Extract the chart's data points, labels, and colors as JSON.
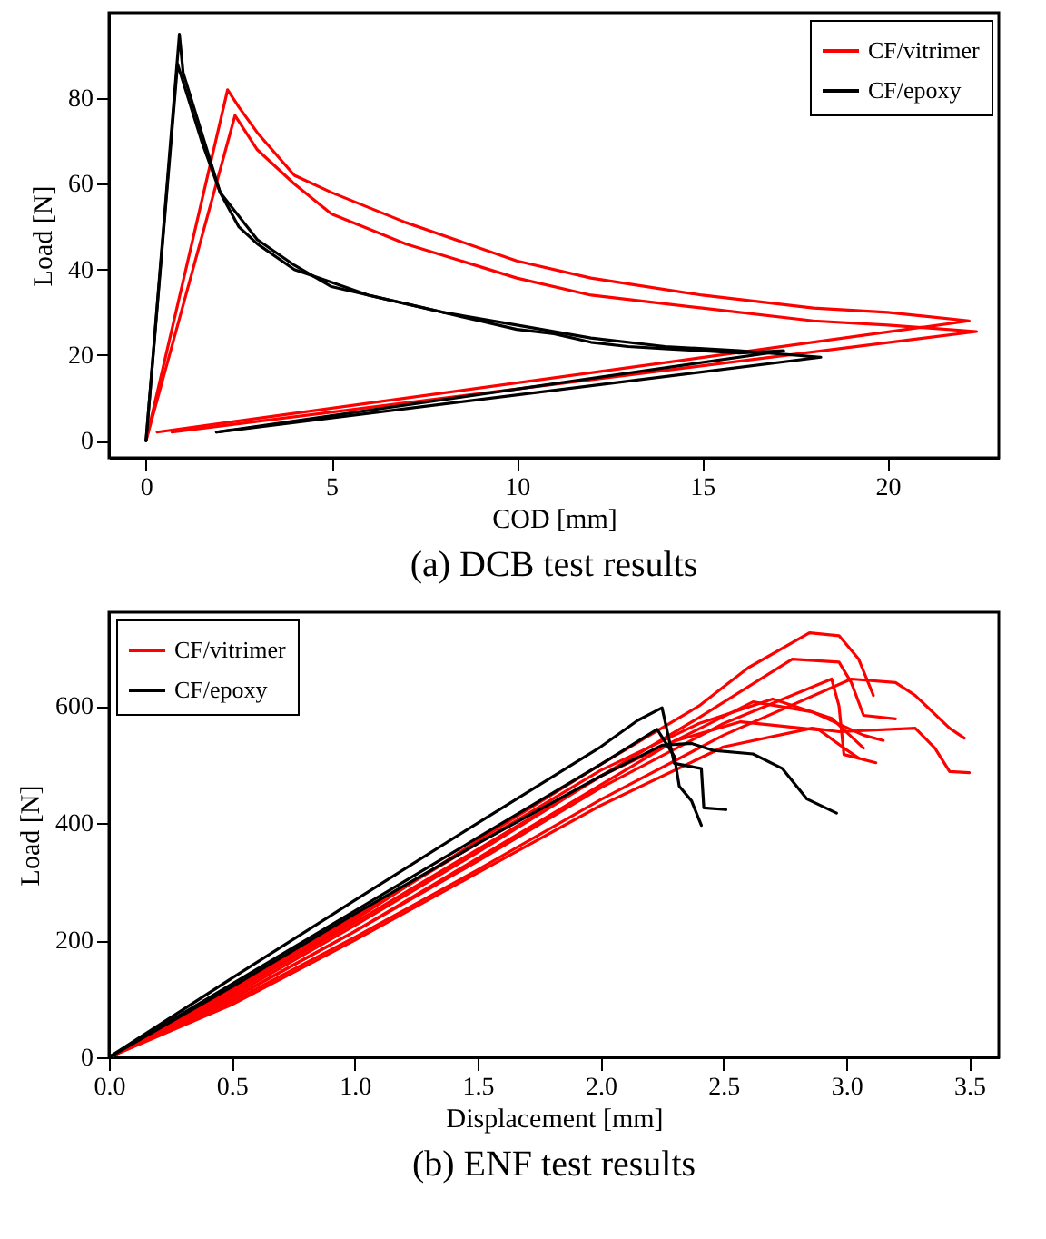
{
  "chart_data": [
    {
      "type": "line",
      "title": "(a) DCB test results",
      "xlabel": "COD [mm]",
      "ylabel": "Load [N]",
      "xlim": [
        -1,
        23
      ],
      "ylim": [
        -4,
        100
      ],
      "xticks": [
        0,
        5,
        10,
        15,
        20
      ],
      "yticks": [
        0,
        20,
        40,
        60,
        80
      ],
      "grid": false,
      "legend": "top right",
      "series": [
        {
          "name": "CF/vitrimer",
          "color": "#ff0000",
          "x": [
            0,
            2.2,
            2.5,
            3,
            4,
            5,
            7,
            10,
            12,
            15,
            18,
            20,
            22.2,
            0.3
          ],
          "values": [
            0,
            82,
            78,
            72,
            62,
            58,
            51,
            42,
            38,
            34,
            31,
            30,
            28,
            2
          ]
        },
        {
          "color": "#ff0000",
          "x": [
            0,
            2.4,
            3,
            4,
            5,
            7,
            10,
            12,
            15,
            18,
            20,
            22.4,
            0.7
          ],
          "values": [
            0,
            76,
            68,
            60,
            53,
            46,
            38,
            34,
            31,
            28,
            27,
            25.5,
            2
          ]
        },
        {
          "name": "CF/epoxy",
          "color": "#000000",
          "x": [
            0,
            0.9,
            1,
            1.5,
            2,
            2.5,
            3,
            4,
            5,
            6,
            7,
            8,
            9,
            10,
            11,
            12,
            13,
            14,
            15,
            16,
            17.2,
            1.9
          ],
          "values": [
            0,
            95,
            86,
            72,
            58,
            50,
            46,
            40,
            37,
            34,
            32,
            30,
            28,
            26,
            25,
            23,
            22,
            21.5,
            21,
            20.5,
            21,
            2
          ]
        },
        {
          "color": "#000000",
          "x": [
            0,
            0.85,
            1.5,
            2,
            3,
            4,
            5,
            6,
            8,
            10,
            12,
            14,
            16,
            18.2,
            1.9
          ],
          "values": [
            0,
            88,
            70,
            58,
            47,
            41,
            36,
            34,
            30,
            27,
            24,
            22,
            21,
            19.5,
            2
          ]
        }
      ]
    },
    {
      "type": "line",
      "title": "(b) ENF test results",
      "xlabel": "Displacement [mm]",
      "ylabel": "Load [N]",
      "xlim": [
        0,
        3.62
      ],
      "ylim": [
        0,
        760
      ],
      "xticks": [
        {
          "value": 0,
          "label": "0.0"
        },
        0.5,
        {
          "value": 1,
          "label": "1.0"
        },
        1.5,
        {
          "value": 2,
          "label": "2.0"
        },
        2.5,
        {
          "value": 3,
          "label": "3.0"
        },
        3.5
      ],
      "yticks": [
        0,
        200,
        400,
        600
      ],
      "grid": false,
      "legend": "top left",
      "series": [
        {
          "name": "CF/vitrimer",
          "color": "#ff0000",
          "x": [
            0,
            0.5,
            1,
            1.5,
            2,
            2.4,
            2.6,
            2.85,
            2.97,
            3.05,
            3.11
          ],
          "values": [
            0,
            110,
            235,
            370,
            500,
            600,
            665,
            725,
            720,
            680,
            618
          ]
        },
        {
          "color": "#ff0000",
          "x": [
            0,
            0.5,
            1,
            1.5,
            2,
            2.4,
            2.78,
            2.97,
            3.02,
            3.07,
            3.2
          ],
          "values": [
            0,
            105,
            225,
            350,
            480,
            580,
            680,
            675,
            640,
            584,
            578
          ]
        },
        {
          "color": "#ff0000",
          "x": [
            0,
            0.5,
            1,
            1.5,
            2,
            2.5,
            2.94,
            2.97,
            2.99,
            3.12
          ],
          "values": [
            0,
            100,
            215,
            335,
            460,
            570,
            646,
            600,
            517,
            503
          ]
        },
        {
          "color": "#ff0000",
          "x": [
            0,
            0.5,
            1,
            1.5,
            2,
            2.5,
            3.02,
            3.2,
            3.28,
            3.42,
            3.48
          ],
          "values": [
            0,
            95,
            205,
            320,
            440,
            550,
            646,
            640,
            618,
            562,
            545
          ]
        },
        {
          "color": "#ff0000",
          "x": [
            0,
            0.5,
            1,
            1.5,
            2,
            2.4,
            2.7,
            2.94,
            3.07
          ],
          "values": [
            0,
            115,
            240,
            365,
            490,
            570,
            612,
            579,
            528
          ]
        },
        {
          "color": "#ff0000",
          "x": [
            0,
            0.5,
            1,
            1.5,
            2,
            2.3,
            2.62,
            2.86,
            3.07,
            3.15
          ],
          "values": [
            0,
            100,
            215,
            340,
            465,
            540,
            607,
            590,
            550,
            541
          ]
        },
        {
          "color": "#ff0000",
          "x": [
            0,
            0.5,
            1,
            1.5,
            2,
            2.5,
            2.86,
            2.97,
            3.28,
            3.36,
            3.42,
            3.5
          ],
          "values": [
            0,
            90,
            200,
            315,
            430,
            530,
            562,
            556,
            562,
            528,
            488,
            486
          ]
        },
        {
          "color": "#ff0000",
          "x": [
            0,
            0.5,
            1,
            1.5,
            2,
            2.3,
            2.57,
            2.89,
            2.99,
            3.05
          ],
          "values": [
            0,
            110,
            230,
            355,
            480,
            540,
            573,
            559,
            528,
            511
          ]
        },
        {
          "name": "CF/epoxy",
          "color": "#000000",
          "x": [
            0,
            0.5,
            1,
            1.5,
            2,
            2.15,
            2.25,
            2.3,
            2.41,
            2.42,
            2.51
          ],
          "values": [
            0,
            135,
            268,
            400,
            530,
            575,
            597,
            502,
            493,
            426,
            423
          ]
        },
        {
          "color": "#000000",
          "x": [
            0,
            0.5,
            1,
            1.5,
            2,
            2.23,
            2.3,
            2.32,
            2.37,
            2.41
          ],
          "values": [
            0,
            125,
            250,
            375,
            500,
            560,
            514,
            463,
            438,
            396
          ]
        },
        {
          "color": "#000000",
          "x": [
            0,
            0.5,
            1,
            1.5,
            2,
            2.25,
            2.37,
            2.46,
            2.62,
            2.74,
            2.84,
            2.96
          ],
          "values": [
            0,
            120,
            245,
            365,
            480,
            533,
            536,
            524,
            518,
            493,
            441,
            417
          ]
        }
      ]
    }
  ]
}
